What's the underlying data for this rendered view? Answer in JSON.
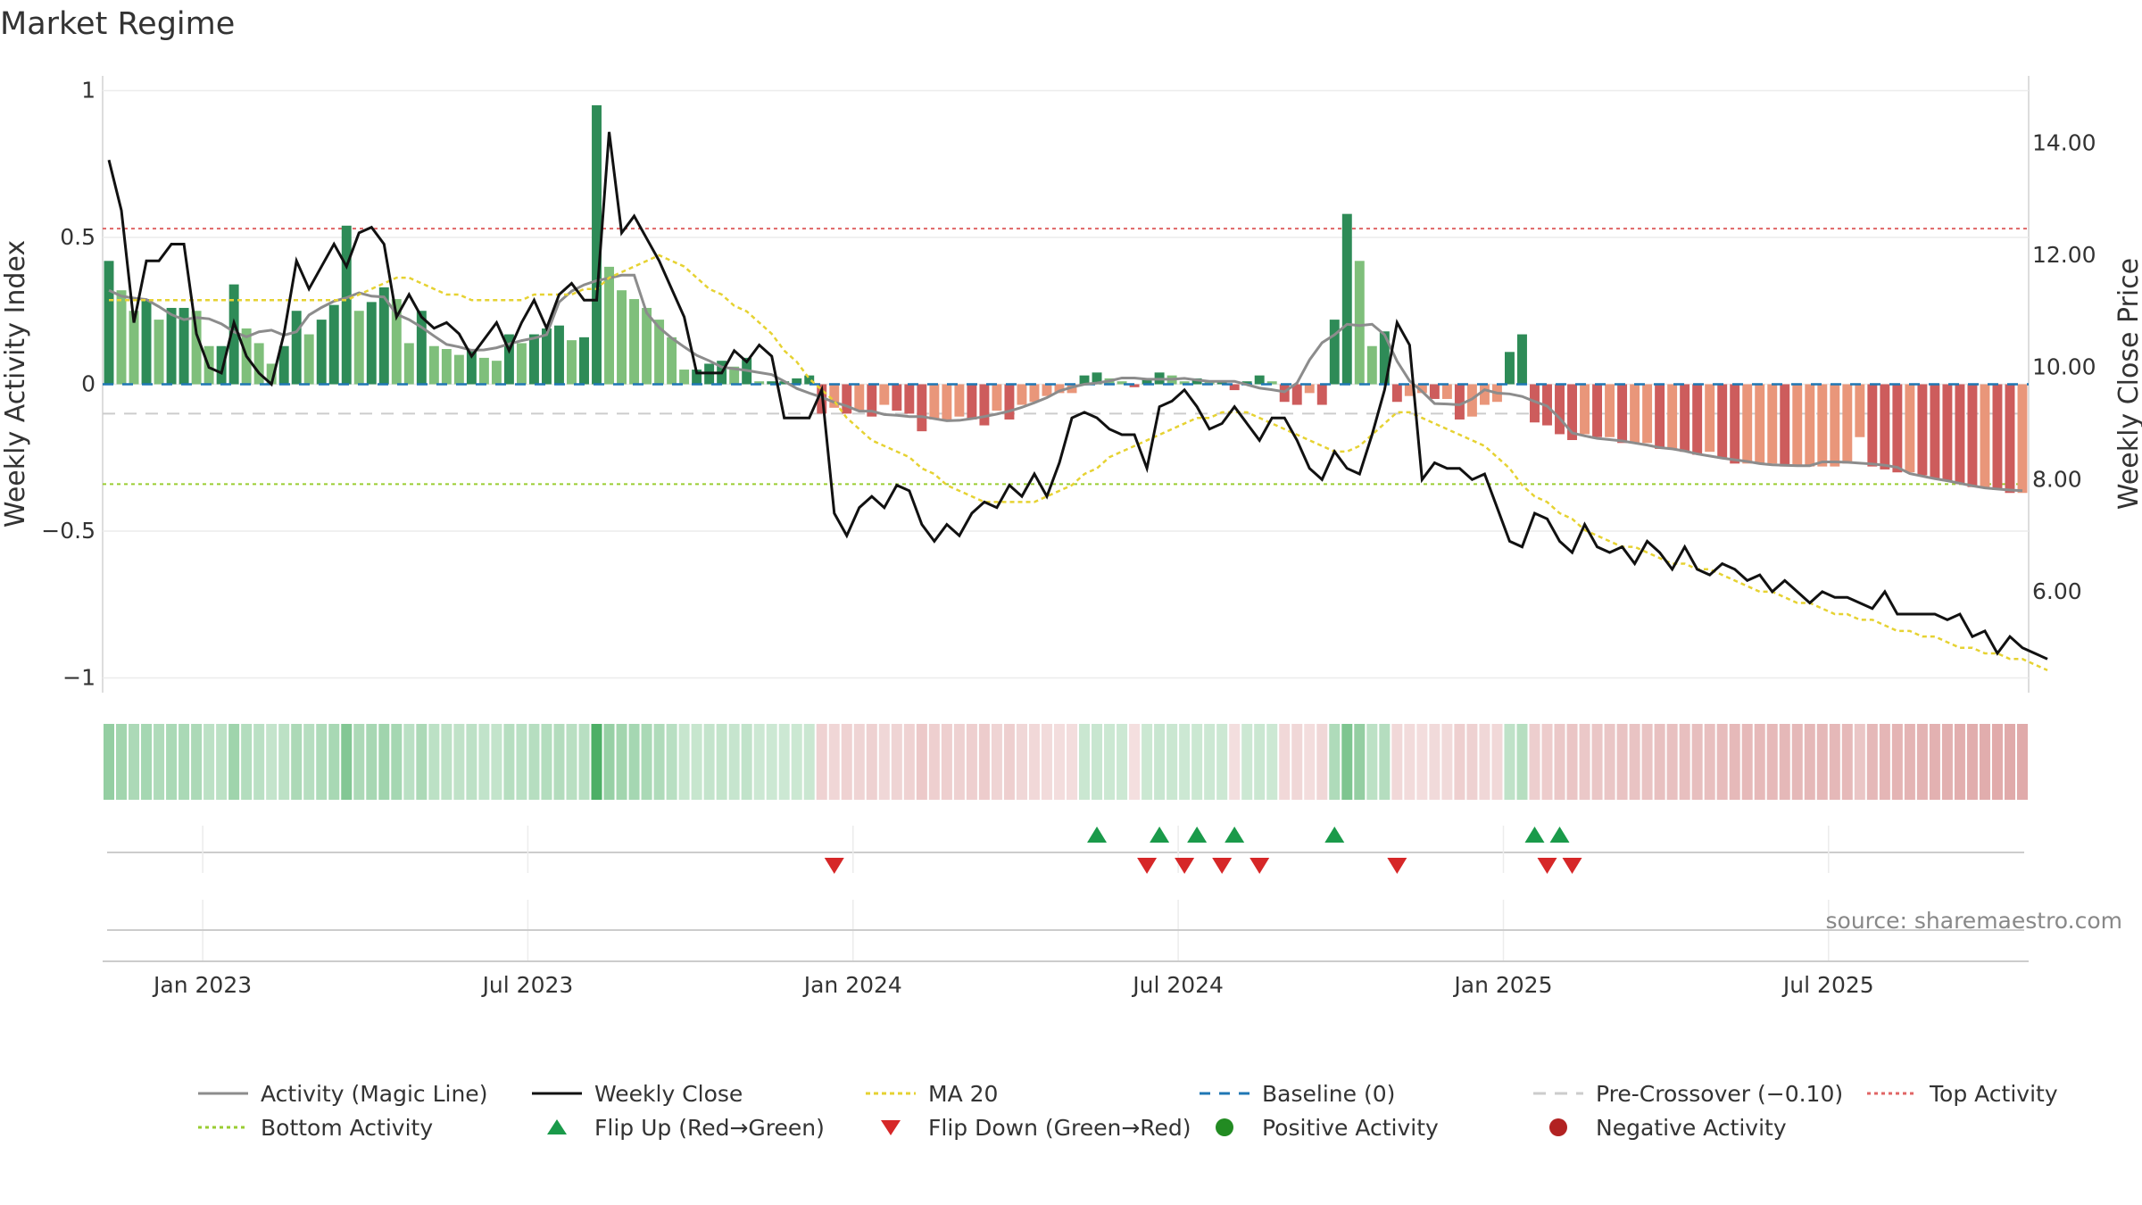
{
  "chart_data": {
    "type": "bar+line",
    "title": "Market Regime",
    "ylabel_left": "Weekly Activity Index",
    "ylabel_right": "Weekly Close Price",
    "source": "source: sharemaestro.com",
    "x_tick_labels": [
      "Jan 2023",
      "Jul 2023",
      "Jan 2024",
      "Jul 2024",
      "Jan 2025",
      "Jul 2025"
    ],
    "x_tick_weeks": [
      7.5,
      33.5,
      59.5,
      85.5,
      111.5,
      137.5
    ],
    "left_axis": {
      "ylim": [
        -1.05,
        1.05
      ],
      "ticks": [
        1,
        0.5,
        0,
        -0.5,
        -1
      ],
      "tick_labels": [
        "1",
        "0.5",
        "0",
        "−0.5",
        "−1"
      ]
    },
    "right_axis": {
      "ylim": [
        4.2,
        15.2
      ],
      "ticks": [
        14,
        12,
        10,
        8,
        6
      ],
      "tick_labels": [
        "14.00",
        "12.00",
        "10.00",
        "8.00",
        "6.00"
      ]
    },
    "reference_lines": {
      "top_activity": 0.53,
      "bottom_activity": -0.34,
      "baseline": 0,
      "pre_crossover": -0.1
    },
    "activity": [
      0.42,
      0.32,
      0.25,
      0.29,
      0.22,
      0.26,
      0.26,
      0.25,
      0.13,
      0.13,
      0.34,
      0.19,
      0.14,
      0.07,
      0.13,
      0.25,
      0.17,
      0.22,
      0.27,
      0.54,
      0.25,
      0.28,
      0.33,
      0.29,
      0.14,
      0.25,
      0.13,
      0.12,
      0.1,
      0.12,
      0.09,
      0.08,
      0.17,
      0.14,
      0.17,
      0.19,
      0.2,
      0.15,
      0.16,
      0.95,
      0.4,
      0.32,
      0.29,
      0.26,
      0.22,
      0.16,
      0.05,
      0.05,
      0.07,
      0.08,
      0.06,
      0.09,
      0.01,
      0.01,
      0.01,
      0.02,
      0.03,
      -0.1,
      -0.08,
      -0.1,
      -0.09,
      -0.11,
      -0.07,
      -0.09,
      -0.1,
      -0.16,
      -0.12,
      -0.12,
      -0.11,
      -0.12,
      -0.14,
      -0.09,
      -0.12,
      -0.07,
      -0.06,
      -0.04,
      -0.03,
      -0.03,
      0.03,
      0.04,
      0.02,
      0.01,
      -0.01,
      0.02,
      0.04,
      0.03,
      0.01,
      0.02,
      0.01,
      0.01,
      -0.02,
      0.01,
      0.03,
      0.01,
      -0.06,
      -0.07,
      -0.03,
      -0.07,
      0.22,
      0.58,
      0.42,
      0.13,
      0.18,
      -0.06,
      -0.04,
      -0.03,
      -0.05,
      -0.05,
      -0.12,
      -0.11,
      -0.07,
      -0.06,
      0.11,
      0.17,
      -0.13,
      -0.14,
      -0.17,
      -0.19,
      -0.17,
      -0.18,
      -0.18,
      -0.2,
      -0.2,
      -0.2,
      -0.22,
      -0.22,
      -0.23,
      -0.24,
      -0.23,
      -0.25,
      -0.27,
      -0.27,
      -0.27,
      -0.27,
      -0.28,
      -0.28,
      -0.28,
      -0.28,
      -0.28,
      -0.27,
      -0.18,
      -0.28,
      -0.29,
      -0.3,
      -0.3,
      -0.31,
      -0.32,
      -0.33,
      -0.34,
      -0.35,
      -0.35,
      -0.36,
      -0.37,
      -0.37
    ],
    "weekly_close": [
      13.7,
      12.8,
      10.8,
      11.9,
      11.9,
      12.2,
      12.2,
      10.6,
      10.0,
      9.9,
      10.8,
      10.2,
      9.9,
      9.7,
      10.6,
      11.9,
      11.4,
      11.8,
      12.2,
      11.8,
      12.4,
      12.5,
      12.2,
      10.9,
      11.3,
      10.9,
      10.7,
      10.8,
      10.6,
      10.2,
      10.5,
      10.8,
      10.3,
      10.8,
      11.2,
      10.7,
      11.3,
      11.5,
      11.2,
      11.2,
      14.2,
      12.4,
      12.7,
      12.3,
      11.9,
      11.4,
      10.9,
      9.9,
      9.9,
      9.9,
      10.3,
      10.1,
      10.4,
      10.2,
      9.1,
      9.1,
      9.1,
      9.6,
      7.4,
      7.0,
      7.5,
      7.7,
      7.5,
      7.9,
      7.8,
      7.2,
      6.9,
      7.2,
      7.0,
      7.4,
      7.6,
      7.5,
      7.9,
      7.7,
      8.1,
      7.7,
      8.3,
      9.1,
      9.2,
      9.1,
      8.9,
      8.8,
      8.8,
      8.2,
      9.3,
      9.4,
      9.6,
      9.3,
      8.9,
      9.0,
      9.3,
      9.0,
      8.7,
      9.1,
      9.1,
      8.7,
      8.2,
      8.0,
      8.5,
      8.2,
      8.1,
      8.8,
      9.6,
      10.8,
      10.4,
      8.0,
      8.3,
      8.2,
      8.2,
      8.0,
      8.1,
      7.5,
      6.9,
      6.8,
      7.4,
      7.3,
      6.9,
      6.7,
      7.2,
      6.8,
      6.7,
      6.8,
      6.5,
      6.9,
      6.7,
      6.4,
      6.8,
      6.4,
      6.3,
      6.5,
      6.4,
      6.2,
      6.3,
      6.0,
      6.2,
      6.0,
      5.8,
      6.0,
      5.9,
      5.9,
      5.8,
      5.7,
      6.0,
      5.6,
      5.6,
      5.6,
      5.6,
      5.5,
      5.6,
      5.2,
      5.3,
      4.9,
      5.2,
      5.0,
      4.9,
      4.8
    ],
    "ma20": [
      11.2,
      11.2,
      11.2,
      11.2,
      11.2,
      11.2,
      11.2,
      11.2,
      11.2,
      11.2,
      11.2,
      11.2,
      11.2,
      11.2,
      11.2,
      11.2,
      11.2,
      11.2,
      11.2,
      11.2,
      11.3,
      11.4,
      11.5,
      11.6,
      11.6,
      11.5,
      11.4,
      11.3,
      11.3,
      11.2,
      11.2,
      11.2,
      11.2,
      11.2,
      11.3,
      11.3,
      11.3,
      11.3,
      11.4,
      11.4,
      11.6,
      11.7,
      11.8,
      11.9,
      12.0,
      11.9,
      11.8,
      11.6,
      11.4,
      11.3,
      11.1,
      11.0,
      10.8,
      10.6,
      10.3,
      10.1,
      9.8,
      9.6,
      9.4,
      9.1,
      8.9,
      8.7,
      8.6,
      8.5,
      8.4,
      8.2,
      8.1,
      7.9,
      7.8,
      7.7,
      7.6,
      7.6,
      7.6,
      7.6,
      7.6,
      7.7,
      7.8,
      7.9,
      8.1,
      8.2,
      8.4,
      8.5,
      8.6,
      8.7,
      8.8,
      8.9,
      9.0,
      9.1,
      9.1,
      9.2,
      9.2,
      9.2,
      9.1,
      9.0,
      8.9,
      8.8,
      8.7,
      8.6,
      8.5,
      8.5,
      8.6,
      8.8,
      9.0,
      9.2,
      9.2,
      9.1,
      9.0,
      8.9,
      8.8,
      8.7,
      8.6,
      8.4,
      8.2,
      7.9,
      7.7,
      7.6,
      7.4,
      7.3,
      7.1,
      7.0,
      6.9,
      6.8,
      6.8,
      6.7,
      6.6,
      6.5,
      6.5,
      6.4,
      6.4,
      6.3,
      6.2,
      6.1,
      6.0,
      6.0,
      5.9,
      5.8,
      5.8,
      5.7,
      5.6,
      5.6,
      5.5,
      5.5,
      5.4,
      5.3,
      5.3,
      5.2,
      5.2,
      5.1,
      5.0,
      5.0,
      4.9,
      4.9,
      4.8,
      4.8,
      4.7,
      4.6
    ],
    "flip_up_weeks": [
      79,
      84,
      87,
      90,
      98,
      114,
      116
    ],
    "flip_down_weeks": [
      58,
      83,
      86,
      89,
      92,
      103,
      115,
      117
    ],
    "legend": [
      "Activity (Magic Line)",
      "Weekly Close",
      "MA 20",
      "Baseline (0)",
      "Pre-Crossover (−0.10)",
      "Top Activity",
      "Bottom Activity",
      "Flip Up (Red→Green)",
      "Flip Down (Green→Red)",
      "Positive Activity",
      "Negative Activity"
    ],
    "colors": {
      "pos_strong": "#2e8b57",
      "pos_light": "#7fbf7b",
      "neg_strong": "#cd5c5c",
      "neg_light": "#e9967a",
      "close": "#111111",
      "magic": "#8c8c8c",
      "ma20": "#e6d232",
      "baseline": "#1f77b4",
      "precross": "#cccccc",
      "top": "#e06666",
      "bottom": "#9acd32",
      "flip_up": "#1a9a4a",
      "flip_down": "#d62728",
      "pos_dot": "#228b22",
      "neg_dot": "#b22222"
    }
  }
}
